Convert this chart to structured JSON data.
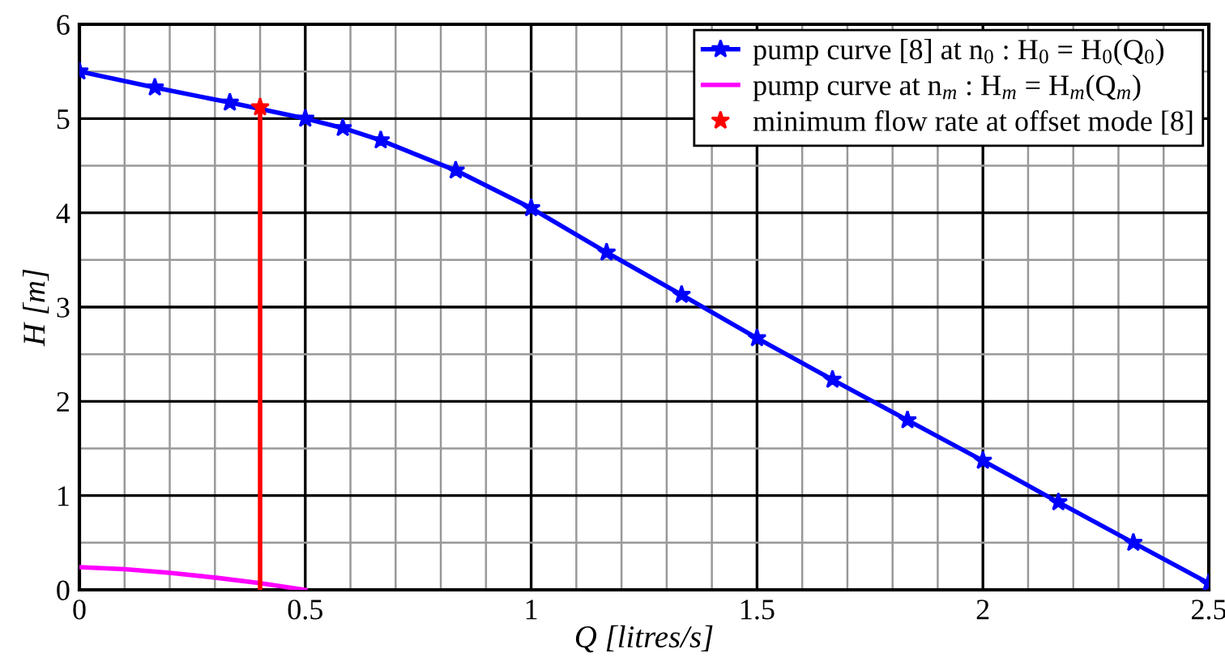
{
  "chart_data": {
    "type": "line",
    "xlabel": "Q [litres/s]",
    "ylabel": "H [m]",
    "xlim": [
      0,
      2.5
    ],
    "ylim": [
      0,
      6
    ],
    "xticks": [
      0,
      {
        "value": 0.1,
        "label": null
      },
      {
        "value": 0.2,
        "label": null
      },
      {
        "value": 0.3,
        "label": null
      },
      {
        "value": 0.4,
        "label": null
      },
      0.5,
      {
        "value": 0.6,
        "label": null
      },
      {
        "value": 0.7,
        "label": null
      },
      {
        "value": 0.8,
        "label": null
      },
      {
        "value": 0.9,
        "label": null
      },
      1,
      {
        "value": 1.1,
        "label": null
      },
      {
        "value": 1.2,
        "label": null
      },
      {
        "value": 1.3,
        "label": null
      },
      {
        "value": 1.4,
        "label": null
      },
      1.5,
      {
        "value": 1.6,
        "label": null
      },
      {
        "value": 1.7,
        "label": null
      },
      {
        "value": 1.8,
        "label": null
      },
      {
        "value": 1.9,
        "label": null
      },
      2,
      {
        "value": 2.1,
        "label": null
      },
      {
        "value": 2.2,
        "label": null
      },
      {
        "value": 2.3,
        "label": null
      },
      {
        "value": 2.4,
        "label": null
      },
      2.5
    ],
    "yticks": [
      0,
      {
        "value": 0.5,
        "label": null
      },
      1,
      {
        "value": 1.5,
        "label": null
      },
      2,
      {
        "value": 2.5,
        "label": null
      },
      3,
      {
        "value": 3.5,
        "label": null
      },
      4,
      {
        "value": 4.5,
        "label": null
      },
      5,
      {
        "value": 5.5,
        "label": null
      },
      6
    ],
    "grid": true,
    "legend": "top right",
    "series": [
      {
        "name": "pump curve [8] at n$_{0}$ : H$_{0}$ = H$_{0}$(Q$_{0}$)",
        "type": "line",
        "color": "#0000ff",
        "marker": "star",
        "x": [
          0,
          0.167,
          0.333,
          0.5,
          0.583,
          0.667,
          0.833,
          1,
          1.167,
          1.333,
          1.5,
          1.667,
          1.833,
          2,
          2.167,
          2.333,
          2.5
        ],
        "values": [
          5.5,
          5.33,
          5.17,
          5.0,
          4.9,
          4.77,
          4.45,
          4.05,
          3.58,
          3.13,
          2.67,
          2.23,
          1.8,
          1.37,
          0.93,
          0.5,
          0.07
        ]
      },
      {
        "name": "pump curve at n$_{m}$ : H$_{m}$ = H$_{m}$(Q$_{m}$)",
        "type": "line",
        "color": "#ff00ff",
        "x": [
          0,
          0.1,
          0.2,
          0.3,
          0.4,
          0.5
        ],
        "values": [
          0.24,
          0.22,
          0.18,
          0.13,
          0.07,
          0.0
        ]
      },
      {
        "color": "#ff0000",
        "x": [
          0.4,
          0.4
        ],
        "values": [
          0,
          5.12
        ]
      },
      {
        "name": "minimum flow rate at offset mode [8]",
        "type": "scatter",
        "color": "#ff0000",
        "marker": "star",
        "x": [
          0.4
        ],
        "values": [
          5.12
        ]
      }
    ]
  }
}
